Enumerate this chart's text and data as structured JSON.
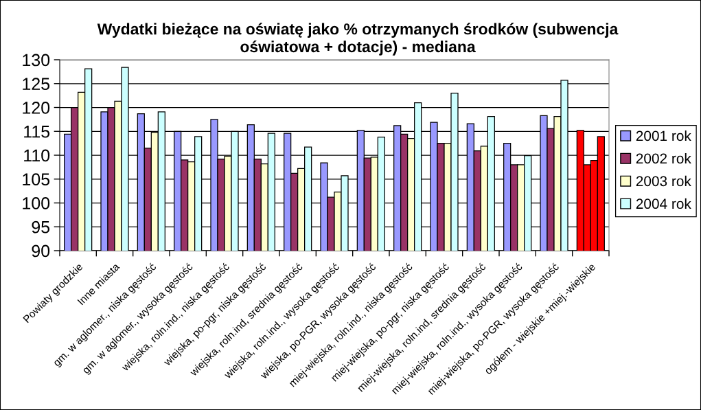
{
  "chart_data": {
    "type": "bar",
    "title": "Wydatki bieżące na oświatę jako % otrzymanych środków (subwencja\noświatowa + dotacje) - mediana",
    "categories": [
      "Powiaty grodzkie",
      "Inne miasta",
      "gm. w aglomer., niska gęstość",
      "gm. w aglomer., wysoka gęstość",
      "wiejska, roln.ind., niska gęstość",
      "wiejska, po-pgr, niska gęstość",
      "wiejska, roln.ind, srednia gęstość",
      "wiejska, roln.ind., wysoka gęstość",
      "wiejska, po-PGR, wysoka gęstość",
      "miej-wiejska, roln.ind., niska gęstość",
      "miej-wiejska, po-pgr, niska gęstość",
      "miej-wiejska, roln.ind, srednia gęstość",
      "miej-wiejska, roln.ind., wysoka gęstość",
      "miej-wiejska, po-PGR, wysoka gęstość",
      "ogółem - wiejskie +miej.-wiejskie"
    ],
    "series": [
      {
        "name": "2001 rok",
        "color": "#9999ff",
        "colors": [
          "#9999ff",
          "#9999ff",
          "#9999ff",
          "#9999ff",
          "#9999ff",
          "#9999ff",
          "#9999ff",
          "#9999ff",
          "#9999ff",
          "#9999ff",
          "#9999ff",
          "#9999ff",
          "#9999ff",
          "#9999ff",
          "#ff0000"
        ],
        "values": [
          114.4,
          119.1,
          118.7,
          115.0,
          117.5,
          116.4,
          114.6,
          108.4,
          115.2,
          116.2,
          116.9,
          116.6,
          112.5,
          118.3,
          115.2
        ]
      },
      {
        "name": "2002 rok",
        "color": "#993366",
        "colors": [
          "#993366",
          "#993366",
          "#993366",
          "#993366",
          "#993366",
          "#993366",
          "#993366",
          "#993366",
          "#993366",
          "#993366",
          "#993366",
          "#993366",
          "#993366",
          "#993366",
          "#ff0000"
        ],
        "values": [
          120.0,
          120.0,
          111.5,
          109.0,
          109.2,
          109.2,
          106.2,
          101.2,
          109.4,
          114.4,
          112.5,
          110.9,
          108.0,
          115.6,
          108.0
        ]
      },
      {
        "name": "2003 rok",
        "color": "#ffffcc",
        "colors": [
          "#ffffcc",
          "#ffffcc",
          "#ffffcc",
          "#ffffcc",
          "#ffffcc",
          "#ffffcc",
          "#ffffcc",
          "#ffffcc",
          "#ffffcc",
          "#ffffcc",
          "#ffffcc",
          "#ffffcc",
          "#ffffcc",
          "#ffffcc",
          "#ff0000"
        ],
        "values": [
          123.2,
          121.3,
          114.8,
          108.6,
          109.8,
          108.2,
          107.2,
          102.3,
          109.6,
          113.5,
          112.5,
          111.9,
          108.0,
          118.1,
          108.9
        ]
      },
      {
        "name": "2004 rok",
        "color": "#ccffff",
        "colors": [
          "#ccffff",
          "#ccffff",
          "#ccffff",
          "#ccffff",
          "#ccffff",
          "#ccffff",
          "#ccffff",
          "#ccffff",
          "#ccffff",
          "#ccffff",
          "#ccffff",
          "#ccffff",
          "#ccffff",
          "#ccffff",
          "#ff0000"
        ],
        "values": [
          128.1,
          128.4,
          119.1,
          113.9,
          115.0,
          114.6,
          111.7,
          105.7,
          113.8,
          121.0,
          123.0,
          118.1,
          109.9,
          125.7,
          113.9
        ]
      }
    ],
    "ylim": [
      90,
      130
    ],
    "yticks": [
      90,
      95,
      100,
      105,
      110,
      115,
      120,
      125,
      130
    ],
    "grid": "y",
    "legend": "right"
  }
}
